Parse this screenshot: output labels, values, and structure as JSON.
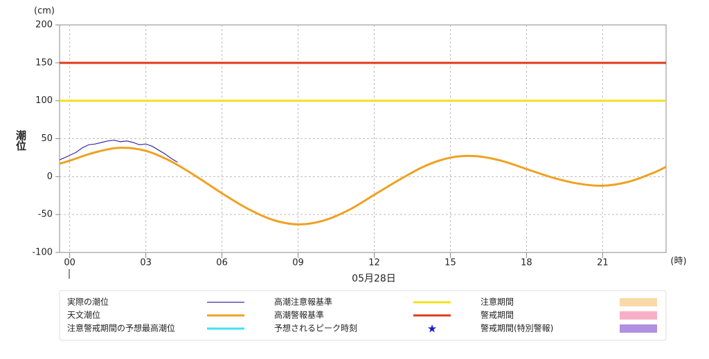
{
  "chart_data": {
    "type": "line",
    "y_unit": "(cm)",
    "y_label": "潮位",
    "x_unit": "(時)",
    "date_label": "05月28日",
    "xlim": [
      -0.4,
      23.5
    ],
    "ylim": [
      -100,
      200
    ],
    "xticks": [
      {
        "value": 0,
        "label": "00"
      },
      {
        "value": 3,
        "label": "03"
      },
      {
        "value": 6,
        "label": "06"
      },
      {
        "value": 9,
        "label": "09"
      },
      {
        "value": 12,
        "label": "12"
      },
      {
        "value": 15,
        "label": "15"
      },
      {
        "value": 18,
        "label": "18"
      },
      {
        "value": 21,
        "label": "21"
      }
    ],
    "yticks": [
      -100,
      -50,
      0,
      50,
      100,
      150,
      200
    ],
    "grid": true,
    "series": [
      {
        "name": "実際の潮位",
        "color": "#3a2a9c",
        "smooth": false,
        "x": [
          -0.4,
          -0.2,
          0,
          0.25,
          0.5,
          0.75,
          1,
          1.25,
          1.5,
          1.75,
          2,
          2.25,
          2.5,
          2.75,
          3,
          3.25,
          3.5,
          3.75,
          4,
          4.25
        ],
        "values": [
          22,
          25,
          28,
          32,
          38,
          42,
          43,
          45,
          47,
          48,
          46,
          47,
          45,
          42,
          43,
          40,
          35,
          30,
          24,
          19
        ]
      },
      {
        "name": "天文潮位",
        "color": "#f0a020",
        "smooth": true,
        "x": [
          -0.4,
          0,
          1,
          2,
          3,
          4,
          5,
          6,
          7,
          8,
          9,
          10,
          11,
          12,
          13,
          14,
          15,
          16,
          17,
          18,
          19,
          20,
          21,
          22,
          23,
          23.5
        ],
        "values": [
          17,
          21,
          32,
          38,
          34,
          20,
          0,
          -22,
          -42,
          -57,
          -63,
          -58,
          -44,
          -24,
          -4,
          14,
          25,
          27,
          21,
          10,
          -1,
          -9,
          -12,
          -7,
          5,
          13
        ]
      }
    ],
    "hlines": [
      {
        "name": "高潮注意報基準",
        "color": "#f2e020",
        "value": 100
      },
      {
        "name": "高潮警報基準",
        "color": "#e03a1a",
        "value": 150
      }
    ],
    "legend_extra": [
      {
        "name": "注意期間",
        "color": "#fad9a8",
        "shape": "rect"
      },
      {
        "name": "警戒期間",
        "color": "#f8b0c8",
        "shape": "rect"
      },
      {
        "name": "注意警戒期間の予想最高潮位",
        "color": "#40e0f0",
        "shape": "line"
      },
      {
        "name": "予想されるピーク時刻",
        "color": "#1a1ad0",
        "shape": "star"
      },
      {
        "name": "警戒期間(特別警報)",
        "color": "#b090e0",
        "shape": "rect"
      }
    ]
  }
}
